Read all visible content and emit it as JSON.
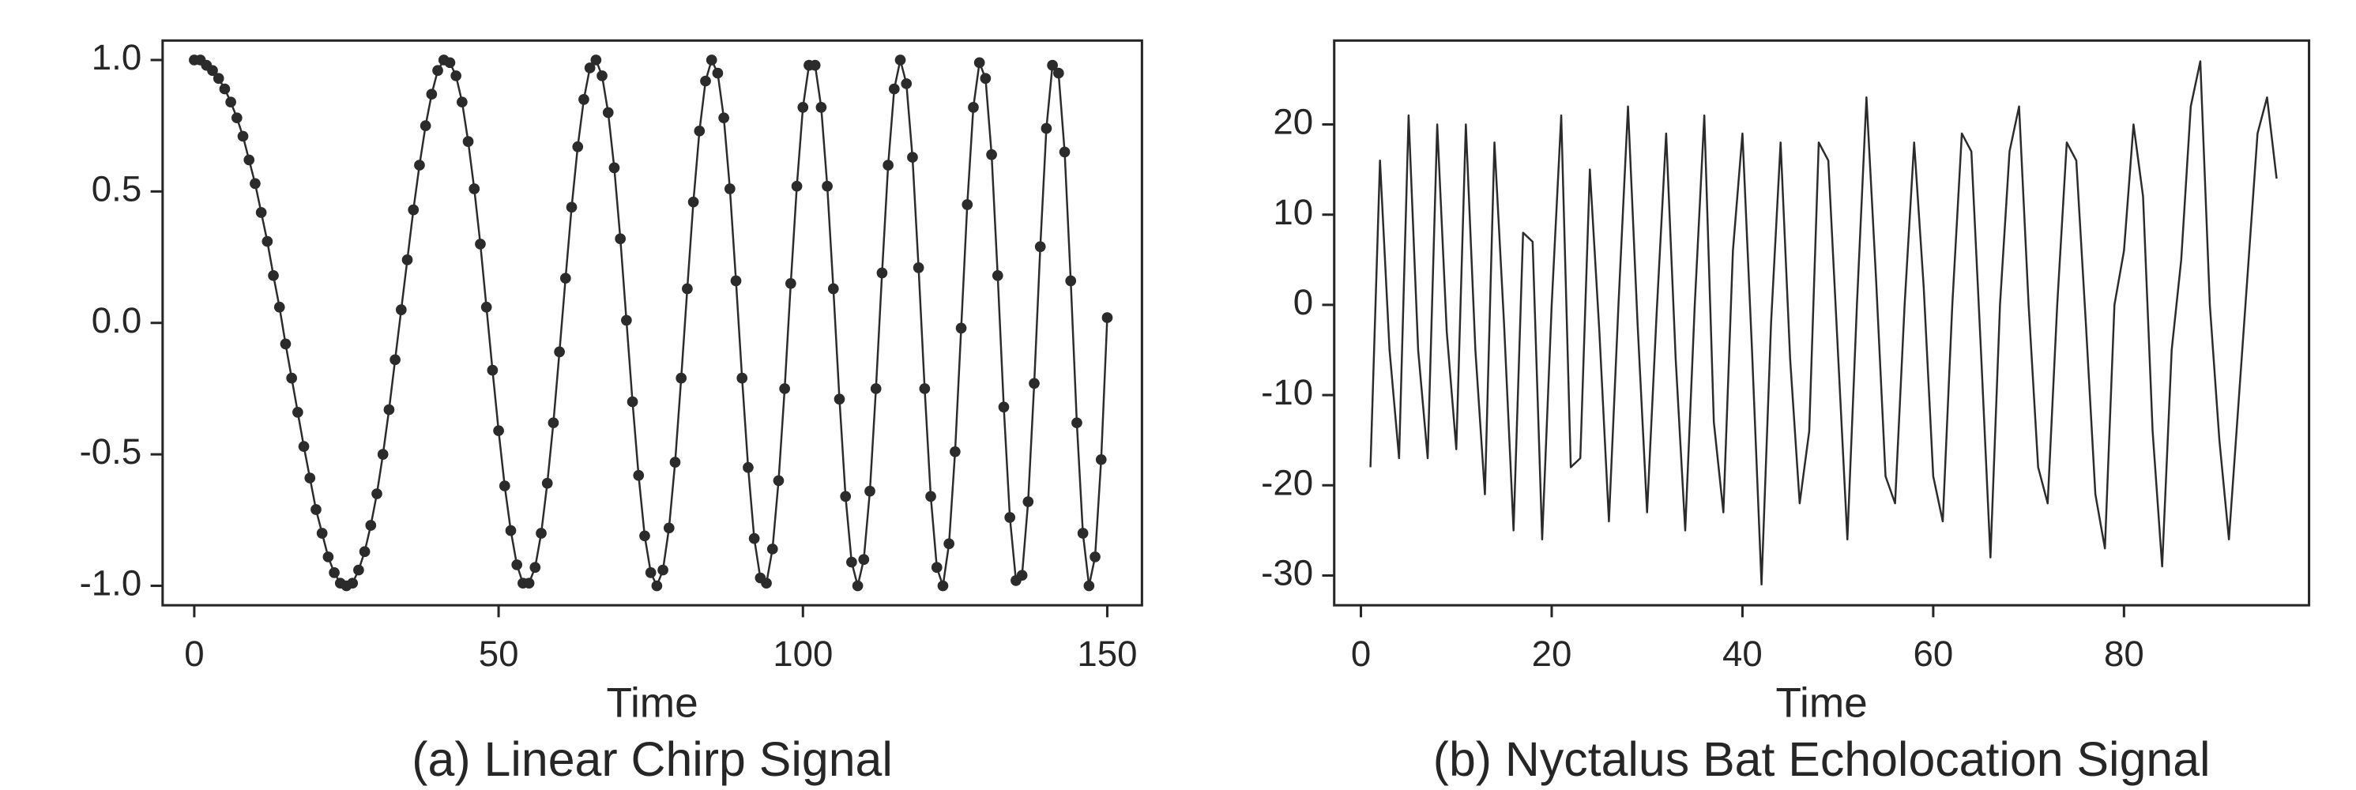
{
  "chart_data": [
    {
      "type": "line",
      "caption": "(a) Linear Chirp Signal",
      "xlabel": "Time",
      "color": "#2b2b2b",
      "markers": true,
      "x": [
        0,
        1,
        2,
        3,
        4,
        5,
        6,
        7,
        8,
        9,
        10,
        11,
        12,
        13,
        14,
        15,
        16,
        17,
        18,
        19,
        20,
        21,
        22,
        23,
        24,
        25,
        26,
        27,
        28,
        29,
        30,
        31,
        32,
        33,
        34,
        35,
        36,
        37,
        38,
        39,
        40,
        41,
        42,
        43,
        44,
        45,
        46,
        47,
        48,
        49,
        50,
        51,
        52,
        53,
        54,
        55,
        56,
        57,
        58,
        59,
        60,
        61,
        62,
        63,
        64,
        65,
        66,
        67,
        68,
        69,
        70,
        71,
        72,
        73,
        74,
        75,
        76,
        77,
        78,
        79,
        80,
        81,
        82,
        83,
        84,
        85,
        86,
        87,
        88,
        89,
        90,
        91,
        92,
        93,
        94,
        95,
        96,
        97,
        98,
        99,
        100,
        101,
        102,
        103,
        104,
        105,
        106,
        107,
        108,
        109,
        110,
        111,
        112,
        113,
        114,
        115,
        116,
        117,
        118,
        119,
        120,
        121,
        122,
        123,
        124,
        125,
        126,
        127,
        128,
        129,
        130,
        131,
        132,
        133,
        134,
        135,
        136,
        137,
        138,
        139,
        140,
        141,
        142,
        143,
        144,
        145,
        146,
        147,
        148,
        149,
        150
      ],
      "values": [
        1.0,
        1.0,
        0.98,
        0.96,
        0.93,
        0.89,
        0.84,
        0.78,
        0.71,
        0.62,
        0.53,
        0.42,
        0.31,
        0.18,
        0.06,
        -0.08,
        -0.21,
        -0.34,
        -0.47,
        -0.59,
        -0.71,
        -0.8,
        -0.89,
        -0.95,
        -0.99,
        -1.0,
        -0.99,
        -0.94,
        -0.87,
        -0.77,
        -0.65,
        -0.5,
        -0.33,
        -0.14,
        0.05,
        0.24,
        0.43,
        0.6,
        0.75,
        0.87,
        0.96,
        1.0,
        0.99,
        0.94,
        0.84,
        0.69,
        0.51,
        0.3,
        0.06,
        -0.18,
        -0.41,
        -0.62,
        -0.79,
        -0.92,
        -0.99,
        -0.99,
        -0.93,
        -0.8,
        -0.61,
        -0.38,
        -0.11,
        0.17,
        0.44,
        0.67,
        0.85,
        0.97,
        1.0,
        0.94,
        0.8,
        0.59,
        0.32,
        0.01,
        -0.3,
        -0.58,
        -0.81,
        -0.95,
        -1.0,
        -0.94,
        -0.78,
        -0.53,
        -0.21,
        0.13,
        0.46,
        0.73,
        0.92,
        1.0,
        0.95,
        0.78,
        0.51,
        0.16,
        -0.21,
        -0.55,
        -0.82,
        -0.97,
        -0.99,
        -0.86,
        -0.6,
        -0.25,
        0.15,
        0.52,
        0.82,
        0.98,
        0.98,
        0.82,
        0.52,
        0.13,
        -0.29,
        -0.66,
        -0.91,
        -1.0,
        -0.9,
        -0.64,
        -0.25,
        0.19,
        0.6,
        0.89,
        1.0,
        0.91,
        0.63,
        0.21,
        -0.25,
        -0.66,
        -0.93,
        -1.0,
        -0.84,
        -0.49,
        -0.02,
        0.45,
        0.82,
        0.99,
        0.93,
        0.64,
        0.18,
        -0.32,
        -0.74,
        -0.98,
        -0.96,
        -0.68,
        -0.23,
        0.29,
        0.74,
        0.98,
        0.95,
        0.65,
        0.16,
        -0.38,
        -0.8,
        -1.0,
        -0.89,
        -0.52,
        0.02
      ],
      "xlim": [
        -5.2,
        155.7
      ],
      "ylim": [
        -1.074,
        1.074
      ],
      "xticks": [
        0,
        50,
        100,
        150
      ],
      "yticks": [
        {
          "value": 1.0,
          "label": "1.0"
        },
        {
          "value": 0.5,
          "label": "0.5"
        },
        {
          "value": 0.0,
          "label": "0.0"
        },
        {
          "value": -0.5,
          "label": "-0.5"
        },
        {
          "value": -1.0,
          "label": "-1.0"
        }
      ],
      "grid": false
    },
    {
      "type": "line",
      "caption": "(b) Nyctalus Bat Echolocation Signal",
      "xlabel": "Time",
      "color": "#2b2b2b",
      "markers": false,
      "x": [
        1,
        2,
        3,
        4,
        5,
        6,
        7,
        8,
        9,
        10,
        11,
        12,
        13,
        14,
        15,
        16,
        17,
        18,
        19,
        20,
        21,
        22,
        23,
        24,
        25,
        26,
        27,
        28,
        29,
        30,
        31,
        32,
        33,
        34,
        35,
        36,
        37,
        38,
        39,
        40,
        41,
        42,
        43,
        44,
        45,
        46,
        47,
        48,
        49,
        50,
        51,
        52,
        53,
        54,
        55,
        56,
        57,
        58,
        59,
        60,
        61,
        62,
        63,
        64,
        65,
        66,
        67,
        68,
        69,
        70,
        71,
        72,
        73,
        74,
        75,
        76,
        77,
        78,
        79,
        80,
        81,
        82,
        83,
        84,
        85,
        86,
        87,
        88,
        89,
        90,
        91,
        92,
        93,
        94,
        95,
        96
      ],
      "values": [
        -18,
        16,
        -5,
        -17,
        21,
        -5,
        -17,
        20,
        -3,
        -16,
        20,
        -5,
        -21,
        18,
        -2,
        -25,
        8,
        7,
        -26,
        0,
        21,
        -18,
        -17,
        15,
        -3,
        -24,
        0,
        22,
        -2,
        -23,
        -1,
        19,
        -6,
        -25,
        0,
        21,
        -13,
        -23,
        6,
        19,
        -5,
        -31,
        -2,
        18,
        -6,
        -22,
        -14,
        18,
        16,
        -5,
        -26,
        0,
        23,
        3,
        -19,
        -22,
        0,
        18,
        2,
        -19,
        -24,
        0,
        19,
        17,
        -5,
        -28,
        0,
        17,
        22,
        0,
        -18,
        -22,
        0,
        18,
        16,
        -2,
        -21,
        -27,
        0,
        6,
        20,
        12,
        -14,
        -29,
        -5,
        5,
        22,
        27,
        0,
        -15,
        -26,
        -11,
        4,
        19,
        23,
        14
      ],
      "xlim": [
        -2.8,
        99.4
      ],
      "ylim": [
        -33.3,
        29.3
      ],
      "xticks": [
        0,
        20,
        40,
        60,
        80
      ],
      "yticks": [
        20,
        10,
        0,
        -10,
        -20,
        -30
      ],
      "grid": false
    }
  ]
}
